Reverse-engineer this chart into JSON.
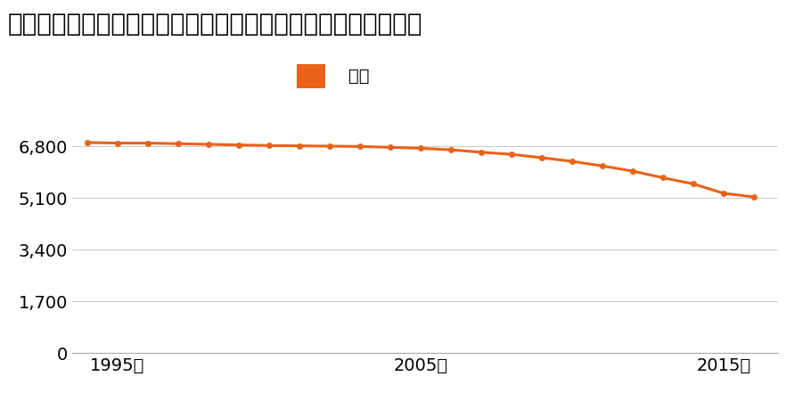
{
  "title": "鳥取県八頭郡若桜町大字高野字ムネソリ４９７番外の地価推移",
  "legend_label": "価格",
  "years": [
    1994,
    1995,
    1996,
    1997,
    1998,
    1999,
    2000,
    2001,
    2002,
    2003,
    2004,
    2005,
    2006,
    2007,
    2008,
    2009,
    2010,
    2011,
    2012,
    2013,
    2014,
    2015,
    2016
  ],
  "values": [
    6920,
    6900,
    6900,
    6880,
    6860,
    6840,
    6820,
    6810,
    6800,
    6790,
    6760,
    6730,
    6680,
    6600,
    6530,
    6420,
    6300,
    6150,
    5980,
    5760,
    5560,
    5250,
    5130
  ],
  "line_color": "#e8621a",
  "marker_color": "#e8621a",
  "background_color": "#ffffff",
  "yticks": [
    0,
    1700,
    3400,
    5100,
    6800
  ],
  "xtick_years": [
    1995,
    2005,
    2015
  ],
  "ylim": [
    0,
    7650
  ],
  "xlim": [
    1993.5,
    2016.8
  ],
  "title_fontsize": 20,
  "legend_fontsize": 14,
  "tick_fontsize": 14,
  "grid_color": "#cccccc",
  "line_width": 2.2,
  "marker_size": 5
}
